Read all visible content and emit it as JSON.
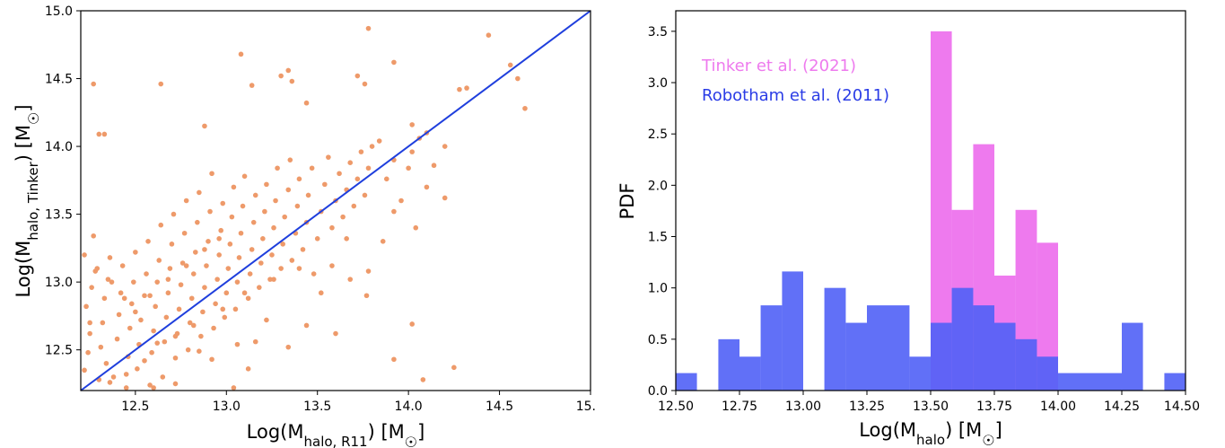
{
  "chart_data": [
    {
      "type": "scatter",
      "xlim": [
        12.2,
        15.0
      ],
      "ylim": [
        12.2,
        15.0
      ],
      "x_ticks": [
        "12.5",
        "13.0",
        "13.5",
        "14.0",
        "14.5",
        "15."
      ],
      "y_ticks": [
        "12.5",
        "13.0",
        "13.5",
        "14.0",
        "14.5",
        "15.0"
      ],
      "xlabel_main": "Log(M",
      "xlabel_sub": "halo, R11",
      "xlabel_unit": ") [M",
      "xlabel_end": "]",
      "ylabel_main": "Log(M",
      "ylabel_sub": "halo, Tinker",
      "ylabel_unit": ") [M",
      "ylabel_end": "]",
      "point_color": "#ee9a6a",
      "line_color": "#1f3fdd",
      "line": {
        "x": [
          12.2,
          15.0
        ],
        "y": [
          12.2,
          15.0
        ]
      },
      "points": [
        [
          12.22,
          12.35
        ],
        [
          12.24,
          12.48
        ],
        [
          12.25,
          12.62
        ],
        [
          12.23,
          12.82
        ],
        [
          12.26,
          12.96
        ],
        [
          12.28,
          13.08
        ],
        [
          12.22,
          13.2
        ],
        [
          12.27,
          13.34
        ],
        [
          12.3,
          12.28
        ],
        [
          12.31,
          12.52
        ],
        [
          12.32,
          12.7
        ],
        [
          12.33,
          12.88
        ],
        [
          12.35,
          13.02
        ],
        [
          12.36,
          13.18
        ],
        [
          12.34,
          12.4
        ],
        [
          12.38,
          12.3
        ],
        [
          12.4,
          12.58
        ],
        [
          12.41,
          12.76
        ],
        [
          12.42,
          12.92
        ],
        [
          12.43,
          13.12
        ],
        [
          12.45,
          12.22
        ],
        [
          12.46,
          12.45
        ],
        [
          12.47,
          12.66
        ],
        [
          12.48,
          12.84
        ],
        [
          12.49,
          13.0
        ],
        [
          12.5,
          13.22
        ],
        [
          12.51,
          12.36
        ],
        [
          12.52,
          12.54
        ],
        [
          12.53,
          12.72
        ],
        [
          12.55,
          12.9
        ],
        [
          12.56,
          13.06
        ],
        [
          12.57,
          13.3
        ],
        [
          12.58,
          12.24
        ],
        [
          12.59,
          12.48
        ],
        [
          12.6,
          12.64
        ],
        [
          12.61,
          12.82
        ],
        [
          12.62,
          13.0
        ],
        [
          12.63,
          13.16
        ],
        [
          12.64,
          13.42
        ],
        [
          12.65,
          12.3
        ],
        [
          12.66,
          12.56
        ],
        [
          12.67,
          12.74
        ],
        [
          12.68,
          12.92
        ],
        [
          12.69,
          13.1
        ],
        [
          12.7,
          13.28
        ],
        [
          12.71,
          13.5
        ],
        [
          12.72,
          12.44
        ],
        [
          12.73,
          12.62
        ],
        [
          12.74,
          12.8
        ],
        [
          12.75,
          12.98
        ],
        [
          12.76,
          13.14
        ],
        [
          12.77,
          13.36
        ],
        [
          12.78,
          13.6
        ],
        [
          12.79,
          12.5
        ],
        [
          12.8,
          12.7
        ],
        [
          12.81,
          12.88
        ],
        [
          12.82,
          13.06
        ],
        [
          12.83,
          13.22
        ],
        [
          12.84,
          13.44
        ],
        [
          12.85,
          13.66
        ],
        [
          12.86,
          12.6
        ],
        [
          12.87,
          12.78
        ],
        [
          12.88,
          12.96
        ],
        [
          12.89,
          13.12
        ],
        [
          12.9,
          13.3
        ],
        [
          12.91,
          13.52
        ],
        [
          12.92,
          13.8
        ],
        [
          12.93,
          12.66
        ],
        [
          12.94,
          12.84
        ],
        [
          12.95,
          13.02
        ],
        [
          12.96,
          13.2
        ],
        [
          12.97,
          13.38
        ],
        [
          12.98,
          13.58
        ],
        [
          12.99,
          12.74
        ],
        [
          13.0,
          12.92
        ],
        [
          13.01,
          13.1
        ],
        [
          13.02,
          13.28
        ],
        [
          13.03,
          13.48
        ],
        [
          13.04,
          13.7
        ],
        [
          13.05,
          12.8
        ],
        [
          13.06,
          13.0
        ],
        [
          13.07,
          13.18
        ],
        [
          13.08,
          13.36
        ],
        [
          13.09,
          13.56
        ],
        [
          13.1,
          13.78
        ],
        [
          13.12,
          12.88
        ],
        [
          13.13,
          13.06
        ],
        [
          13.14,
          13.24
        ],
        [
          13.15,
          13.44
        ],
        [
          13.16,
          13.64
        ],
        [
          13.18,
          12.96
        ],
        [
          13.19,
          13.14
        ],
        [
          13.2,
          13.32
        ],
        [
          13.21,
          13.52
        ],
        [
          13.22,
          13.72
        ],
        [
          13.24,
          13.02
        ],
        [
          13.25,
          13.2
        ],
        [
          13.26,
          13.4
        ],
        [
          13.27,
          13.6
        ],
        [
          13.28,
          13.84
        ],
        [
          13.3,
          13.1
        ],
        [
          13.31,
          13.28
        ],
        [
          13.32,
          13.48
        ],
        [
          13.34,
          13.68
        ],
        [
          13.35,
          13.9
        ],
        [
          13.36,
          13.16
        ],
        [
          13.38,
          13.36
        ],
        [
          13.39,
          13.56
        ],
        [
          13.4,
          13.76
        ],
        [
          13.42,
          13.24
        ],
        [
          13.44,
          13.44
        ],
        [
          13.45,
          13.64
        ],
        [
          13.47,
          13.84
        ],
        [
          13.48,
          13.06
        ],
        [
          13.5,
          13.32
        ],
        [
          13.52,
          13.52
        ],
        [
          13.54,
          13.72
        ],
        [
          13.56,
          13.92
        ],
        [
          13.58,
          13.4
        ],
        [
          13.6,
          13.6
        ],
        [
          13.62,
          13.8
        ],
        [
          13.64,
          13.48
        ],
        [
          13.66,
          13.68
        ],
        [
          13.68,
          13.88
        ],
        [
          13.7,
          13.56
        ],
        [
          13.72,
          13.76
        ],
        [
          13.74,
          13.96
        ],
        [
          13.76,
          13.64
        ],
        [
          13.78,
          13.84
        ],
        [
          13.8,
          14.0
        ],
        [
          13.84,
          14.04
        ],
        [
          13.88,
          13.76
        ],
        [
          13.92,
          13.9
        ],
        [
          13.96,
          13.6
        ],
        [
          14.02,
          13.96
        ],
        [
          14.06,
          14.06
        ],
        [
          14.1,
          13.7
        ],
        [
          14.14,
          13.86
        ],
        [
          14.2,
          14.0
        ],
        [
          12.27,
          14.46
        ],
        [
          12.3,
          14.09
        ],
        [
          12.33,
          14.09
        ],
        [
          12.64,
          14.46
        ],
        [
          12.88,
          14.15
        ],
        [
          13.08,
          14.68
        ],
        [
          13.14,
          14.45
        ],
        [
          13.3,
          14.52
        ],
        [
          13.34,
          14.56
        ],
        [
          13.36,
          14.48
        ],
        [
          13.44,
          14.32
        ],
        [
          13.72,
          14.52
        ],
        [
          13.78,
          14.87
        ],
        [
          13.76,
          14.46
        ],
        [
          13.92,
          14.62
        ],
        [
          14.02,
          14.16
        ],
        [
          14.28,
          14.42
        ],
        [
          14.32,
          14.43
        ],
        [
          14.44,
          14.82
        ],
        [
          14.56,
          14.6
        ],
        [
          14.6,
          14.5
        ],
        [
          14.64,
          14.28
        ],
        [
          14.1,
          14.1
        ],
        [
          14.2,
          13.62
        ],
        [
          14.25,
          12.37
        ],
        [
          14.08,
          12.28
        ],
        [
          14.02,
          12.69
        ],
        [
          13.92,
          12.43
        ],
        [
          13.77,
          12.9
        ],
        [
          13.6,
          12.62
        ],
        [
          13.44,
          12.68
        ],
        [
          13.34,
          12.52
        ],
        [
          13.04,
          12.22
        ],
        [
          12.72,
          12.25
        ],
        [
          12.6,
          12.22
        ],
        [
          12.85,
          12.49
        ],
        [
          13.16,
          12.56
        ],
        [
          12.92,
          12.43
        ],
        [
          13.12,
          12.36
        ],
        [
          13.52,
          12.92
        ],
        [
          13.68,
          13.02
        ],
        [
          13.78,
          13.08
        ],
        [
          13.66,
          13.32
        ],
        [
          13.92,
          13.52
        ],
        [
          14.04,
          13.4
        ],
        [
          13.86,
          13.3
        ],
        [
          14.0,
          13.84
        ],
        [
          13.58,
          13.12
        ],
        [
          13.22,
          12.72
        ],
        [
          13.06,
          12.54
        ],
        [
          12.36,
          12.26
        ],
        [
          12.45,
          12.32
        ],
        [
          12.55,
          12.42
        ],
        [
          12.62,
          12.55
        ],
        [
          12.72,
          12.6
        ],
        [
          12.82,
          12.68
        ],
        [
          12.98,
          12.8
        ],
        [
          13.1,
          12.92
        ],
        [
          13.26,
          13.02
        ],
        [
          13.4,
          13.1
        ],
        [
          12.25,
          12.7
        ],
        [
          12.29,
          13.1
        ],
        [
          12.37,
          13.0
        ],
        [
          12.44,
          12.88
        ],
        [
          12.5,
          12.78
        ],
        [
          12.58,
          12.9
        ],
        [
          12.68,
          13.02
        ],
        [
          12.78,
          13.12
        ],
        [
          12.88,
          13.24
        ],
        [
          12.96,
          13.32
        ]
      ]
    },
    {
      "type": "bar",
      "xlim": [
        12.5,
        14.5
      ],
      "ylim": [
        0.0,
        3.7
      ],
      "x_ticks": [
        "12.50",
        "12.75",
        "13.00",
        "13.25",
        "13.50",
        "13.75",
        "14.00",
        "14.25",
        "14.50"
      ],
      "y_ticks": [
        "0.0",
        "0.5",
        "1.0",
        "1.5",
        "2.0",
        "2.5",
        "3.0",
        "3.5"
      ],
      "xlabel_main": "Log(M",
      "xlabel_sub": "halo",
      "xlabel_unit": ") [M",
      "xlabel_end": "]",
      "ylabel": "PDF",
      "legend_placement": "top-left",
      "series": [
        {
          "name": "Tinker et al. (2021)",
          "color": "#ee7aee",
          "bins": [
            [
              13.5,
              13.583,
              3.5
            ],
            [
              13.583,
              13.667,
              1.76
            ],
            [
              13.667,
              13.75,
              2.4
            ],
            [
              13.75,
              13.833,
              1.12
            ],
            [
              13.833,
              13.917,
              1.76
            ],
            [
              13.917,
              14.0,
              1.44
            ]
          ]
        },
        {
          "name": "Robotham et al. (2011)",
          "color": "#5060f6",
          "alpha": 0.9,
          "bins": [
            [
              12.5,
              12.583,
              0.17
            ],
            [
              12.667,
              12.75,
              0.5
            ],
            [
              12.75,
              12.833,
              0.33
            ],
            [
              12.833,
              12.917,
              0.83
            ],
            [
              12.917,
              13.0,
              1.16
            ],
            [
              13.083,
              13.167,
              1.0
            ],
            [
              13.167,
              13.25,
              0.66
            ],
            [
              13.25,
              13.417,
              0.83
            ],
            [
              13.417,
              13.5,
              0.33
            ],
            [
              13.5,
              13.583,
              0.66
            ],
            [
              13.583,
              13.667,
              1.0
            ],
            [
              13.667,
              13.75,
              0.83
            ],
            [
              13.75,
              13.833,
              0.66
            ],
            [
              13.833,
              13.917,
              0.5
            ],
            [
              13.917,
              14.0,
              0.33
            ],
            [
              14.0,
              14.25,
              0.17
            ],
            [
              14.25,
              14.333,
              0.66
            ],
            [
              14.417,
              14.5,
              0.17
            ]
          ]
        }
      ]
    }
  ]
}
